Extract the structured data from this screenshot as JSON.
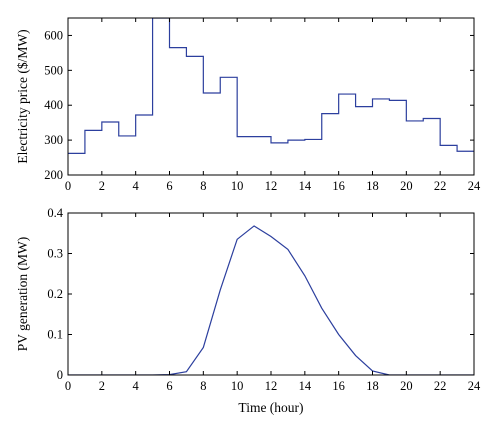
{
  "chart_data": [
    {
      "type": "line",
      "step": true,
      "title": "",
      "xlabel": "",
      "ylabel": "Electricity price ($/MW)",
      "xlim": [
        0,
        24
      ],
      "ylim": [
        200,
        650
      ],
      "xticks": [
        0,
        2,
        4,
        6,
        8,
        10,
        12,
        14,
        16,
        18,
        20,
        22,
        24
      ],
      "yticks": [
        200,
        300,
        400,
        500,
        600
      ],
      "x": [
        0,
        1,
        2,
        3,
        4,
        5,
        6,
        7,
        8,
        9,
        10,
        11,
        12,
        13,
        14,
        15,
        16,
        17,
        18,
        19,
        20,
        21,
        22,
        23,
        24
      ],
      "series": [
        {
          "values": [
            262,
            328,
            352,
            312,
            372,
            650,
            565,
            540,
            435,
            480,
            310,
            310,
            292,
            300,
            302,
            376,
            432,
            396,
            418,
            414,
            355,
            362,
            285,
            268,
            268
          ]
        }
      ],
      "grid": false
    },
    {
      "type": "line",
      "title": "",
      "xlabel": "Time (hour)",
      "ylabel": "PV generation (MW)",
      "xlim": [
        0,
        24
      ],
      "ylim": [
        0,
        0.4
      ],
      "xticks": [
        0,
        2,
        4,
        6,
        8,
        10,
        12,
        14,
        16,
        18,
        20,
        22,
        24
      ],
      "yticks": [
        0,
        0.1,
        0.2,
        0.3,
        0.4
      ],
      "x": [
        0,
        1,
        2,
        3,
        4,
        5,
        6,
        7,
        8,
        9,
        10,
        11,
        12,
        13,
        14,
        15,
        16,
        17,
        18,
        19,
        20,
        21,
        22,
        23,
        24
      ],
      "series": [
        {
          "values": [
            0,
            0,
            0,
            0,
            0,
            0,
            0.001,
            0.008,
            0.068,
            0.21,
            0.335,
            0.368,
            0.342,
            0.31,
            0.245,
            0.165,
            0.1,
            0.048,
            0.01,
            0,
            0,
            0,
            0,
            0,
            0
          ]
        }
      ],
      "grid": false
    }
  ],
  "colors": {
    "series": "#2c3f9e",
    "axis": "#000000"
  }
}
